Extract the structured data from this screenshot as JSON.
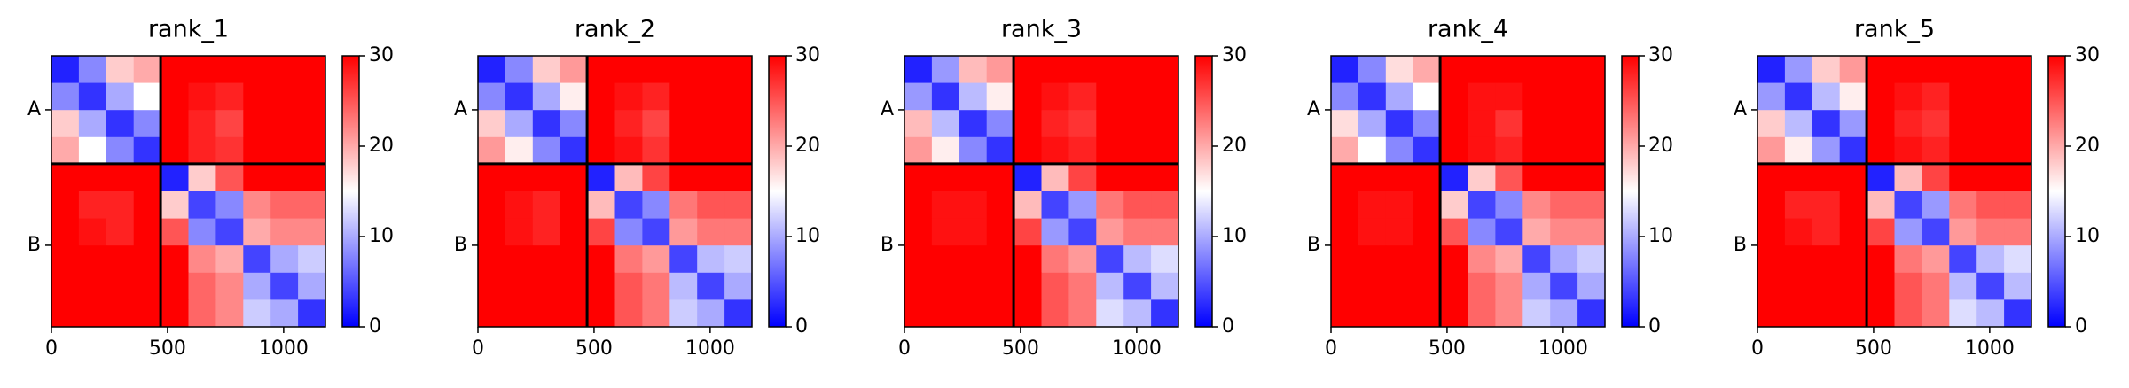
{
  "chart_data": [
    {
      "type": "heatmap",
      "title": "rank_1",
      "colormap": "bwr",
      "xlim": [
        0,
        1180
      ],
      "ylim": [
        0,
        1180
      ],
      "xticks": [
        0,
        500,
        1000
      ],
      "yticks": [
        {
          "value": 235,
          "label": "A"
        },
        {
          "value": 825,
          "label": "B"
        }
      ],
      "zlim": [
        0,
        30
      ],
      "zticks": [
        0,
        10,
        20,
        30
      ],
      "chain_boundaries": [
        470
      ],
      "z": [
        [
          2,
          8,
          18,
          20,
          30,
          30,
          30,
          30,
          30,
          30
        ],
        [
          8,
          3,
          10,
          15,
          30,
          29,
          28,
          30,
          30,
          30
        ],
        [
          18,
          10,
          3,
          8,
          30,
          28,
          26,
          30,
          30,
          30
        ],
        [
          20,
          15,
          8,
          3,
          30,
          28,
          27,
          30,
          30,
          30
        ],
        [
          30,
          30,
          30,
          30,
          2,
          18,
          25,
          30,
          30,
          30
        ],
        [
          30,
          28,
          28,
          30,
          18,
          4,
          8,
          22,
          24,
          24
        ],
        [
          30,
          29,
          28,
          30,
          25,
          8,
          4,
          20,
          22,
          22
        ],
        [
          30,
          30,
          30,
          30,
          30,
          22,
          20,
          4,
          10,
          12
        ],
        [
          30,
          30,
          30,
          30,
          30,
          24,
          22,
          10,
          4,
          10
        ],
        [
          30,
          30,
          30,
          30,
          30,
          24,
          22,
          12,
          10,
          3
        ]
      ]
    },
    {
      "type": "heatmap",
      "title": "rank_2",
      "colormap": "bwr",
      "xlim": [
        0,
        1180
      ],
      "ylim": [
        0,
        1180
      ],
      "xticks": [
        0,
        500,
        1000
      ],
      "yticks": [
        {
          "value": 235,
          "label": "A"
        },
        {
          "value": 825,
          "label": "B"
        }
      ],
      "zlim": [
        0,
        30
      ],
      "zticks": [
        0,
        10,
        20,
        30
      ],
      "chain_boundaries": [
        470
      ],
      "z": [
        [
          2,
          8,
          18,
          21,
          30,
          30,
          30,
          30,
          30,
          30
        ],
        [
          8,
          3,
          10,
          16,
          30,
          29,
          28,
          30,
          30,
          30
        ],
        [
          18,
          10,
          3,
          8,
          30,
          28,
          26,
          30,
          30,
          30
        ],
        [
          21,
          16,
          8,
          3,
          30,
          29,
          27,
          30,
          30,
          30
        ],
        [
          30,
          30,
          30,
          30,
          2,
          19,
          26,
          30,
          30,
          30
        ],
        [
          30,
          29,
          28,
          30,
          19,
          4,
          8,
          23,
          25,
          25
        ],
        [
          30,
          29,
          28,
          30,
          26,
          8,
          4,
          21,
          23,
          23
        ],
        [
          30,
          30,
          30,
          30,
          30,
          23,
          21,
          4,
          11,
          12
        ],
        [
          30,
          30,
          30,
          30,
          30,
          25,
          23,
          11,
          4,
          10
        ],
        [
          30,
          30,
          30,
          30,
          30,
          25,
          23,
          12,
          10,
          3
        ]
      ]
    },
    {
      "type": "heatmap",
      "title": "rank_3",
      "colormap": "bwr",
      "xlim": [
        0,
        1180
      ],
      "ylim": [
        0,
        1180
      ],
      "xticks": [
        0,
        500,
        1000
      ],
      "yticks": [
        {
          "value": 235,
          "label": "A"
        },
        {
          "value": 825,
          "label": "B"
        }
      ],
      "zlim": [
        0,
        30
      ],
      "zticks": [
        0,
        10,
        20,
        30
      ],
      "chain_boundaries": [
        470
      ],
      "z": [
        [
          2,
          9,
          19,
          21,
          30,
          30,
          30,
          30,
          30,
          30
        ],
        [
          9,
          3,
          11,
          16,
          30,
          29,
          28,
          30,
          30,
          30
        ],
        [
          19,
          11,
          3,
          8,
          30,
          28,
          27,
          30,
          30,
          30
        ],
        [
          21,
          16,
          8,
          3,
          30,
          29,
          28,
          30,
          30,
          30
        ],
        [
          30,
          30,
          30,
          30,
          2,
          19,
          26,
          30,
          30,
          30
        ],
        [
          30,
          29,
          29,
          30,
          19,
          4,
          9,
          23,
          25,
          25
        ],
        [
          30,
          29,
          29,
          30,
          26,
          9,
          4,
          21,
          23,
          23
        ],
        [
          30,
          30,
          30,
          30,
          30,
          23,
          21,
          4,
          11,
          13
        ],
        [
          30,
          30,
          30,
          30,
          30,
          25,
          23,
          11,
          4,
          11
        ],
        [
          30,
          30,
          30,
          30,
          30,
          25,
          23,
          13,
          11,
          3
        ]
      ]
    },
    {
      "type": "heatmap",
      "title": "rank_4",
      "colormap": "bwr",
      "xlim": [
        0,
        1180
      ],
      "ylim": [
        0,
        1180
      ],
      "xticks": [
        0,
        500,
        1000
      ],
      "yticks": [
        {
          "value": 235,
          "label": "A"
        },
        {
          "value": 825,
          "label": "B"
        }
      ],
      "zlim": [
        0,
        30
      ],
      "zticks": [
        0,
        10,
        20,
        30
      ],
      "chain_boundaries": [
        470
      ],
      "z": [
        [
          2,
          8,
          17,
          20,
          30,
          30,
          30,
          30,
          30,
          30
        ],
        [
          8,
          3,
          10,
          15,
          30,
          29,
          29,
          30,
          30,
          30
        ],
        [
          17,
          10,
          3,
          8,
          30,
          29,
          27,
          30,
          30,
          30
        ],
        [
          20,
          15,
          8,
          3,
          30,
          29,
          28,
          30,
          30,
          30
        ],
        [
          30,
          30,
          30,
          30,
          2,
          18,
          25,
          30,
          30,
          30
        ],
        [
          30,
          29,
          29,
          30,
          18,
          4,
          8,
          22,
          24,
          24
        ],
        [
          30,
          29,
          29,
          30,
          25,
          8,
          4,
          20,
          22,
          22
        ],
        [
          30,
          30,
          30,
          30,
          30,
          22,
          20,
          4,
          10,
          12
        ],
        [
          30,
          30,
          30,
          30,
          30,
          24,
          22,
          10,
          4,
          10
        ],
        [
          30,
          30,
          30,
          30,
          30,
          24,
          22,
          12,
          10,
          3
        ]
      ]
    },
    {
      "type": "heatmap",
      "title": "rank_5",
      "colormap": "bwr",
      "xlim": [
        0,
        1180
      ],
      "ylim": [
        0,
        1180
      ],
      "xticks": [
        0,
        500,
        1000
      ],
      "yticks": [
        {
          "value": 235,
          "label": "A"
        },
        {
          "value": 825,
          "label": "B"
        }
      ],
      "zlim": [
        0,
        30
      ],
      "zticks": [
        0,
        10,
        20,
        30
      ],
      "chain_boundaries": [
        470
      ],
      "z": [
        [
          2,
          9,
          18,
          21,
          30,
          30,
          30,
          30,
          30,
          30
        ],
        [
          9,
          3,
          11,
          16,
          30,
          29,
          28,
          30,
          30,
          30
        ],
        [
          18,
          11,
          3,
          9,
          30,
          28,
          27,
          30,
          30,
          30
        ],
        [
          21,
          16,
          9,
          3,
          30,
          29,
          28,
          30,
          30,
          30
        ],
        [
          30,
          30,
          30,
          30,
          2,
          19,
          26,
          30,
          30,
          30
        ],
        [
          30,
          28,
          28,
          30,
          19,
          4,
          9,
          23,
          25,
          25
        ],
        [
          30,
          29,
          28,
          30,
          26,
          9,
          4,
          21,
          23,
          23
        ],
        [
          30,
          30,
          30,
          30,
          30,
          23,
          21,
          4,
          11,
          13
        ],
        [
          30,
          30,
          30,
          30,
          30,
          25,
          23,
          11,
          4,
          11
        ],
        [
          30,
          30,
          30,
          30,
          30,
          25,
          23,
          13,
          11,
          3
        ]
      ]
    }
  ]
}
